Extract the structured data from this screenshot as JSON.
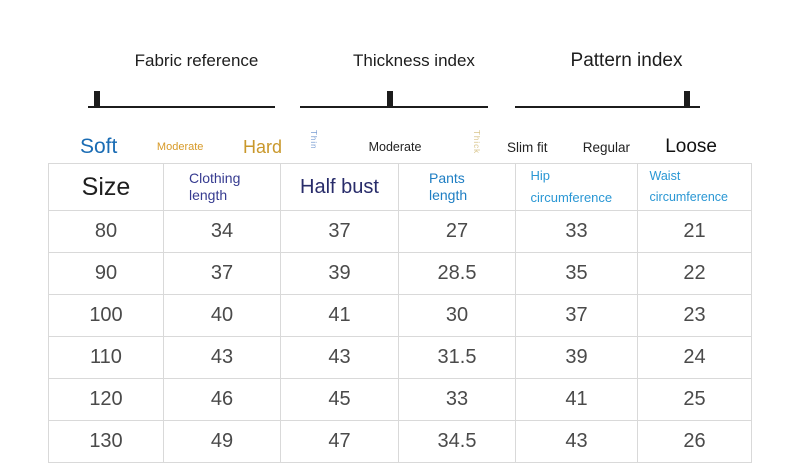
{
  "colors": {
    "soft_blue": "#1a6cb4",
    "gold": "#d79a28",
    "hard_gold": "#c9982b",
    "thin_blue": "#7b9ed3",
    "thick_tan": "#d9c68e",
    "header_navy": "#363b90",
    "header_dark_navy": "#282c6a",
    "header_mid_blue": "#1e7ec3",
    "header_light_blue": "#2a97d4",
    "slider_black": "#1c1c1c",
    "value_gray": "#4a4a4a",
    "table_border": "#d9d9d9"
  },
  "index_panels": [
    {
      "title": "Fabric reference",
      "marker_percent": 5,
      "labels": [
        {
          "text": "Soft"
        },
        {
          "text": "Moderate"
        },
        {
          "text": "Hard"
        }
      ]
    },
    {
      "title": "Thickness index",
      "marker_percent": 48,
      "labels": [
        {
          "text": "Thin"
        },
        {
          "text": "Moderate"
        },
        {
          "text": "Thick"
        }
      ]
    },
    {
      "title": "Pattern index",
      "marker_percent": 93,
      "labels": [
        {
          "text": "Slim fit"
        },
        {
          "text": "Regular"
        },
        {
          "text": "Loose"
        }
      ]
    }
  ],
  "chart_data": {
    "type": "table",
    "columns": [
      "Size",
      "Clothing length",
      "Half bust",
      "Pants length",
      "Hip circumference",
      "Waist circumference"
    ],
    "rows": [
      [
        80,
        34,
        37,
        27,
        33,
        21
      ],
      [
        90,
        37,
        39,
        28.5,
        35,
        22
      ],
      [
        100,
        40,
        41,
        30,
        37,
        23
      ],
      [
        110,
        43,
        43,
        31.5,
        39,
        24
      ],
      [
        120,
        46,
        45,
        33,
        41,
        25
      ],
      [
        130,
        49,
        47,
        34.5,
        43,
        26
      ]
    ]
  }
}
